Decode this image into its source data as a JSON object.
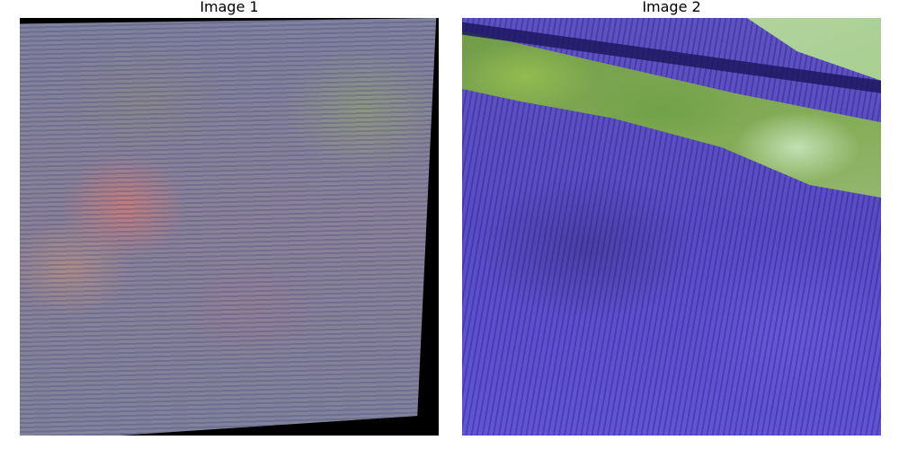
{
  "panels": [
    {
      "title": "Image 1",
      "subject": "aerial-field-tile"
    },
    {
      "title": "Image 2",
      "subject": "aerial-field-tile"
    }
  ],
  "colors": {
    "background": "#ffffff",
    "image1_tone": "#7f7f9b",
    "image2_tone": "#5a4ec8",
    "image2_vegetation": "#86ad58",
    "border_fill": "#000000"
  }
}
